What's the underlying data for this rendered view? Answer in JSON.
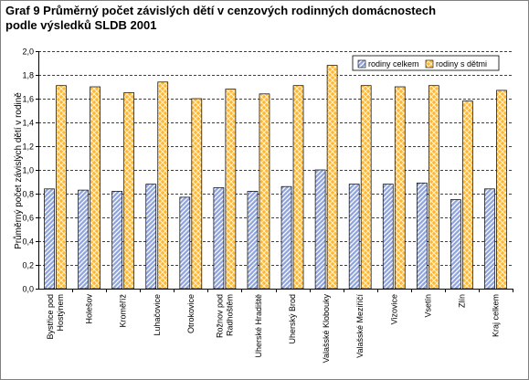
{
  "title": {
    "line1": "Graf 9  Průměrný počet závislých dětí v cenzových rodinných domácnostech",
    "line2": "podle výsledků SLDB 2001"
  },
  "chart_data": {
    "type": "bar",
    "title": "Graf 9  Průměrný počet závislých dětí v cenzových rodinných domácnostech podle výsledků SLDB 2001",
    "xlabel": "",
    "ylabel": "Průměrný počet závislých dětí v rodině",
    "ylim": [
      0,
      2.0
    ],
    "ytick_step": 0.2,
    "ytick_labels": [
      "0,0",
      "0,2",
      "0,4",
      "0,6",
      "0,8",
      "1,0",
      "1,2",
      "1,4",
      "1,6",
      "1,8",
      "2,0"
    ],
    "grid": true,
    "legend_position": "top-right",
    "categories": [
      "Bystřice pod Hostýnem",
      "Holešov",
      "Kroměříž",
      "Luhačovice",
      "Otrokovice",
      "Rožnov pod Radhoštěm",
      "Uherské Hradiště",
      "Uherský Brod",
      "Valašské Klobouky",
      "Valašské Meziříčí",
      "Vizovice",
      "Vsetín",
      "Zlín",
      "Kraj celkem"
    ],
    "category_lines": [
      [
        "Bystřice pod",
        "Hostýnem"
      ],
      [
        "Holešov"
      ],
      [
        "Kroměříž"
      ],
      [
        "Luhačovice"
      ],
      [
        "Otrokovice"
      ],
      [
        "Rožnov pod",
        "Radhoštěm"
      ],
      [
        "Uherské Hradiště"
      ],
      [
        "Uherský Brod"
      ],
      [
        "Valašské Klobouky"
      ],
      [
        "Valašské Meziříčí"
      ],
      [
        "Vizovice"
      ],
      [
        "Vsetín"
      ],
      [
        "Zlín"
      ],
      [
        "Kraj celkem"
      ]
    ],
    "series": [
      {
        "name": "rodiny celkem",
        "color": "#8fa3dd",
        "values": [
          0.84,
          0.83,
          0.82,
          0.88,
          0.77,
          0.85,
          0.82,
          0.86,
          1.0,
          0.88,
          0.88,
          0.89,
          0.75,
          0.84
        ]
      },
      {
        "name": "rodiny s dětmi",
        "color": "#ffb733",
        "values": [
          1.71,
          1.7,
          1.65,
          1.74,
          1.6,
          1.68,
          1.64,
          1.71,
          1.88,
          1.71,
          1.7,
          1.71,
          1.58,
          1.67
        ]
      }
    ]
  }
}
